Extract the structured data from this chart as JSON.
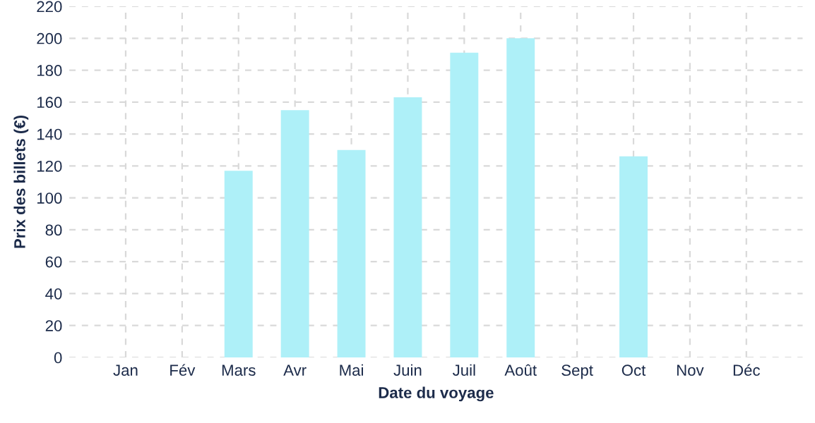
{
  "chart_data": {
    "type": "bar",
    "xlabel": "Date du voyage",
    "ylabel": "Prix des billets (€)",
    "categories": [
      "Jan",
      "Fév",
      "Mars",
      "Avr",
      "Mai",
      "Juin",
      "Juil",
      "Août",
      "Sept",
      "Oct",
      "Nov",
      "Déc"
    ],
    "values": [
      0,
      0,
      117,
      155,
      130,
      163,
      191,
      200,
      0,
      126,
      0,
      0
    ],
    "color": "#aef0f8",
    "ylim": [
      0,
      220
    ],
    "yticks": [
      0,
      20,
      40,
      60,
      80,
      100,
      120,
      140,
      160,
      180,
      200,
      220
    ],
    "grid": true
  }
}
